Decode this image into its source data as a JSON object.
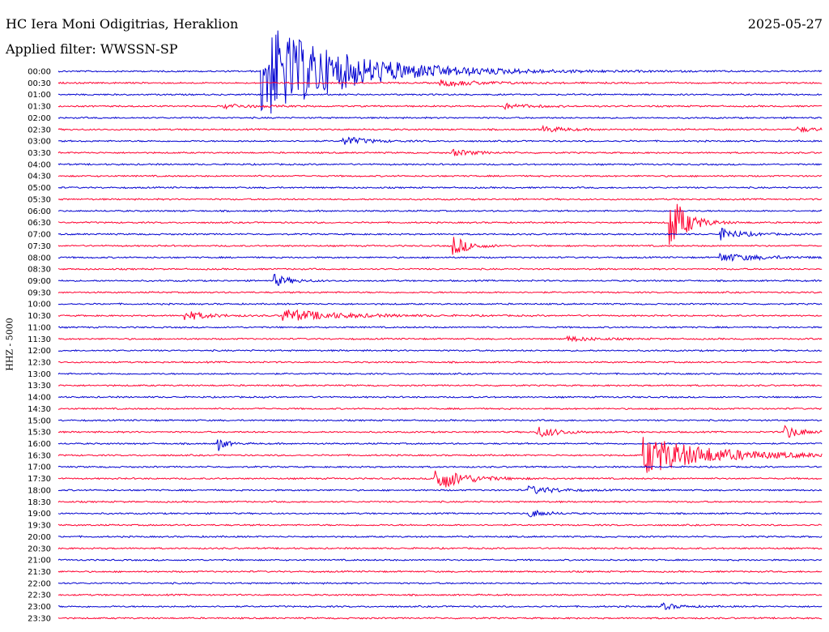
{
  "header": {
    "station": "HC Iera Moni Odigitrias, Heraklion",
    "filter": "Applied filter: WWSSN-SP",
    "date": "2025-05-27"
  },
  "chart_data": {
    "type": "line",
    "title": "HC Iera Moni Odigitrias, Heraklion",
    "ylabel": "HHZ - 5000",
    "row_labels": [
      "00:00",
      "00:30",
      "01:00",
      "01:30",
      "02:00",
      "02:30",
      "03:00",
      "03:30",
      "04:00",
      "04:30",
      "05:00",
      "05:30",
      "06:00",
      "06:30",
      "07:00",
      "07:30",
      "08:00",
      "08:30",
      "09:00",
      "09:30",
      "10:00",
      "10:30",
      "11:00",
      "11:30",
      "12:00",
      "12:30",
      "13:00",
      "13:30",
      "14:00",
      "14:30",
      "15:00",
      "15:30",
      "16:00",
      "16:30",
      "17:00",
      "17:30",
      "18:00",
      "18:30",
      "19:00",
      "19:30",
      "20:00",
      "20:30",
      "21:00",
      "21:30",
      "22:00",
      "22:30",
      "23:00",
      "23:30"
    ],
    "series_colors": [
      "#0000d0",
      "#ff0030"
    ],
    "trace_span_minutes": 30,
    "events": [
      {
        "row": "00:00",
        "minute": 8.0,
        "amplitude": 62,
        "decay": 3.0
      },
      {
        "row": "00:30",
        "minute": 15.0,
        "amplitude": 4,
        "decay": 1.5
      },
      {
        "row": "01:30",
        "minute": 6.5,
        "amplitude": 3,
        "decay": 1.0
      },
      {
        "row": "01:30",
        "minute": 17.5,
        "amplitude": 3,
        "decay": 1.0
      },
      {
        "row": "02:30",
        "minute": 19.0,
        "amplitude": 4,
        "decay": 0.8
      },
      {
        "row": "02:30",
        "minute": 29.0,
        "amplitude": 3,
        "decay": 0.8
      },
      {
        "row": "03:00",
        "minute": 11.2,
        "amplitude": 6,
        "decay": 0.8
      },
      {
        "row": "03:30",
        "minute": 15.5,
        "amplitude": 4,
        "decay": 0.8
      },
      {
        "row": "06:30",
        "minute": 24.0,
        "amplitude": 38,
        "decay": 0.6
      },
      {
        "row": "07:00",
        "minute": 26.0,
        "amplitude": 7,
        "decay": 0.8
      },
      {
        "row": "07:30",
        "minute": 15.5,
        "amplitude": 12,
        "decay": 0.6
      },
      {
        "row": "08:00",
        "minute": 26.0,
        "amplitude": 5,
        "decay": 1.5
      },
      {
        "row": "09:00",
        "minute": 8.5,
        "amplitude": 7,
        "decay": 0.6
      },
      {
        "row": "10:30",
        "minute": 5.0,
        "amplitude": 6,
        "decay": 0.8
      },
      {
        "row": "10:30",
        "minute": 8.8,
        "amplitude": 8,
        "decay": 2.0
      },
      {
        "row": "11:30",
        "minute": 20.0,
        "amplitude": 3,
        "decay": 1.0
      },
      {
        "row": "15:30",
        "minute": 18.8,
        "amplitude": 7,
        "decay": 0.8
      },
      {
        "row": "15:30",
        "minute": 28.5,
        "amplitude": 9,
        "decay": 0.6
      },
      {
        "row": "16:00",
        "minute": 6.3,
        "amplitude": 8,
        "decay": 0.3
      },
      {
        "row": "16:30",
        "minute": 23.0,
        "amplitude": 24,
        "decay": 2.5
      },
      {
        "row": "17:30",
        "minute": 14.8,
        "amplitude": 16,
        "decay": 1.0
      },
      {
        "row": "18:00",
        "minute": 18.5,
        "amplitude": 5,
        "decay": 1.0
      },
      {
        "row": "19:00",
        "minute": 18.5,
        "amplitude": 5,
        "decay": 0.6
      },
      {
        "row": "23:00",
        "minute": 23.7,
        "amplitude": 4,
        "decay": 0.6
      }
    ]
  }
}
